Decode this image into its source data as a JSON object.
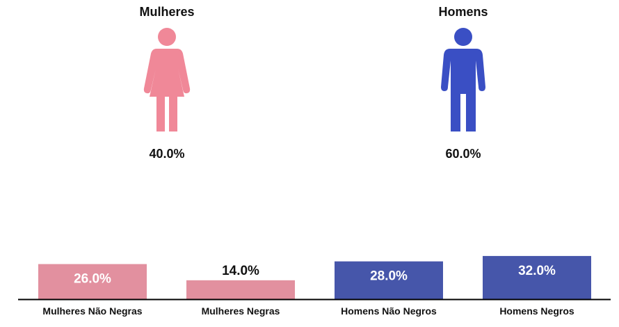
{
  "women": {
    "title": "Mulheres",
    "percent": "40.0%",
    "color": "#f08898"
  },
  "men": {
    "title": "Homens",
    "percent": "60.0%",
    "color": "#3a4fc4"
  },
  "chart_data": {
    "type": "bar",
    "categories": [
      "Mulheres Não Negras",
      "Mulheres Negras",
      "Homens Não Negros",
      "Homens Negros"
    ],
    "values": [
      26.0,
      14.0,
      28.0,
      32.0
    ],
    "labels": [
      "26.0%",
      "14.0%",
      "28.0%",
      "32.0%"
    ],
    "colors": [
      "#e2909f",
      "#e2909f",
      "#4656aa",
      "#4656aa"
    ],
    "label_colors": [
      "#ffffff",
      "#111111",
      "#ffffff",
      "#ffffff"
    ],
    "ylim": [
      0,
      100
    ],
    "grid": false
  }
}
